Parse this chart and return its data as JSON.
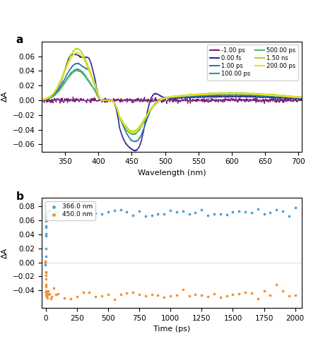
{
  "panel_a": {
    "xlabel": "Wavelength (nm)",
    "ylabel": "ΔA",
    "xlim": [
      315,
      705
    ],
    "ylim": [
      -0.07,
      0.08
    ],
    "yticks": [
      -0.06,
      -0.04,
      -0.02,
      0.0,
      0.02,
      0.04,
      0.06
    ],
    "xticks": [
      350,
      400,
      450,
      500,
      550,
      600,
      650,
      700
    ],
    "legend_entries": [
      {
        "label": "-1.00 ps",
        "color": "#7b1a7b"
      },
      {
        "label": "0.00 fs",
        "color": "#2d2d8f"
      },
      {
        "label": "1.00 ps",
        "color": "#2e75b0"
      },
      {
        "label": "100.00 ps",
        "color": "#2a9d8a"
      },
      {
        "label": "500.00 ps",
        "color": "#4db86a"
      },
      {
        "label": "1.50 ns",
        "color": "#a8d820"
      },
      {
        "label": "200.00 ps",
        "color": "#f0e020"
      }
    ]
  },
  "panel_b": {
    "xlabel": "Time (ps)",
    "ylabel": "ΔA",
    "xlim": [
      -30,
      2050
    ],
    "ylim": [
      -0.065,
      0.092
    ],
    "yticks": [
      -0.04,
      -0.02,
      0.0,
      0.02,
      0.04,
      0.06,
      0.08
    ],
    "xticks": [
      0,
      250,
      500,
      750,
      1000,
      1250,
      1500,
      1750,
      2000
    ],
    "series": [
      {
        "label": "366.0 nm",
        "color": "#4a9fd4",
        "marker": "o"
      },
      {
        "label": "450.0 nm",
        "color": "#f0922e",
        "marker": "o"
      }
    ]
  }
}
